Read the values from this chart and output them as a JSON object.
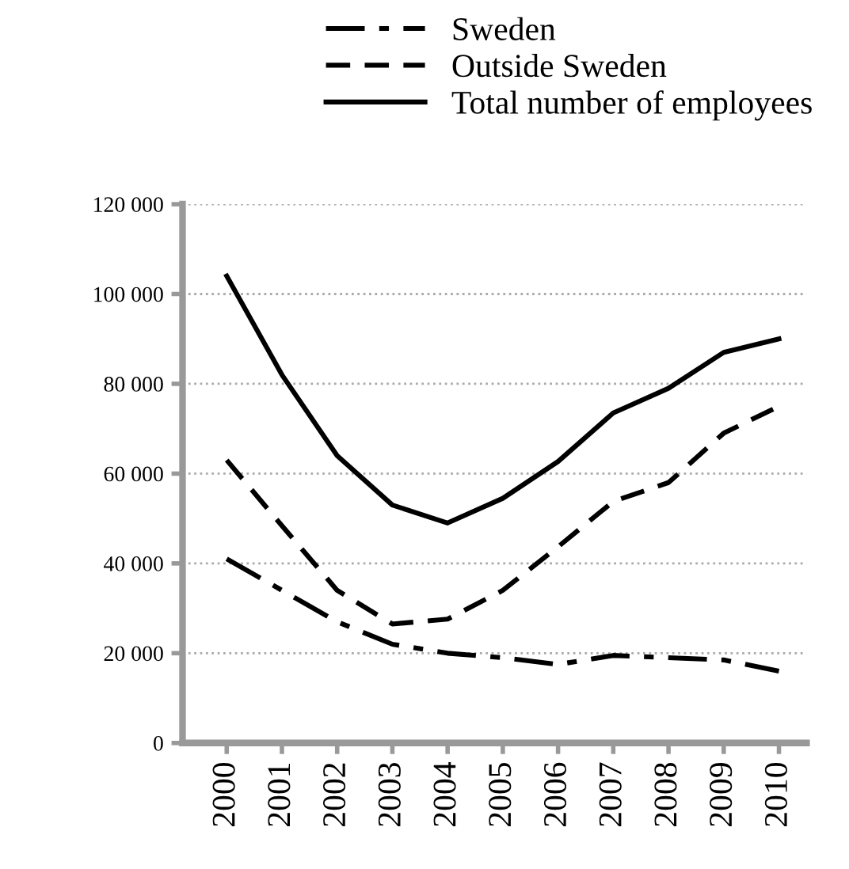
{
  "chart_data": {
    "type": "line",
    "categories": [
      "2000",
      "2001",
      "2002",
      "2003",
      "2004",
      "2005",
      "2006",
      "2007",
      "2008",
      "2009",
      "2010"
    ],
    "series": [
      {
        "name": "Sweden",
        "color": "#000000",
        "line_style": "dashdot",
        "values": [
          41000,
          34000,
          27000,
          22000,
          20000,
          19000,
          17500,
          19500,
          19000,
          18500,
          16000
        ]
      },
      {
        "name": "Outside Sweden",
        "color": "#000000",
        "line_style": "dashed",
        "values": [
          63000,
          48400,
          34000,
          26500,
          27600,
          34000,
          43700,
          53800,
          58000,
          69000,
          75000
        ]
      },
      {
        "name": "Total number of employees",
        "color": "#000000",
        "line_style": "solid",
        "values": [
          104000,
          82000,
          64000,
          53000,
          49000,
          54500,
          62700,
          73500,
          79000,
          87000,
          90000
        ]
      }
    ],
    "ylim": [
      0,
      120000
    ],
    "yticks": [
      {
        "value": 0,
        "label": "0"
      },
      {
        "value": 20000,
        "label": "20 000"
      },
      {
        "value": 40000,
        "label": "40 000"
      },
      {
        "value": 60000,
        "label": "60 000"
      },
      {
        "value": 80000,
        "label": "80 000"
      },
      {
        "value": 100000,
        "label": "100 000"
      },
      {
        "value": 120000,
        "label": "120 000"
      }
    ],
    "grid": "y",
    "legend": "top",
    "marker": "none"
  }
}
